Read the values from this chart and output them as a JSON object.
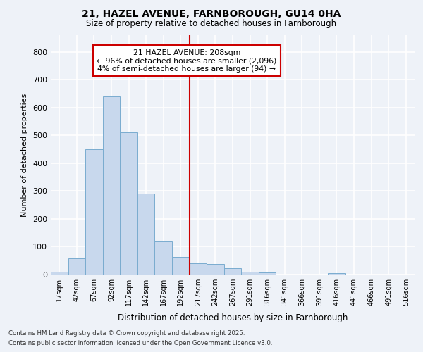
{
  "title_line1": "21, HAZEL AVENUE, FARNBOROUGH, GU14 0HA",
  "title_line2": "Size of property relative to detached houses in Farnborough",
  "xlabel": "Distribution of detached houses by size in Farnborough",
  "ylabel": "Number of detached properties",
  "categories": [
    "17sqm",
    "42sqm",
    "67sqm",
    "92sqm",
    "117sqm",
    "142sqm",
    "167sqm",
    "192sqm",
    "217sqm",
    "242sqm",
    "267sqm",
    "291sqm",
    "316sqm",
    "341sqm",
    "366sqm",
    "391sqm",
    "416sqm",
    "441sqm",
    "466sqm",
    "491sqm",
    "516sqm"
  ],
  "values": [
    11,
    57,
    450,
    640,
    510,
    290,
    120,
    63,
    40,
    37,
    22,
    10,
    8,
    0,
    0,
    0,
    5,
    0,
    0,
    0,
    0
  ],
  "bar_color": "#c8d8ed",
  "bar_edge_color": "#7aaccf",
  "vline_index": 7.5,
  "vline_color": "#cc0000",
  "annotation_text": "21 HAZEL AVENUE: 208sqm\n← 96% of detached houses are smaller (2,096)\n4% of semi-detached houses are larger (94) →",
  "annotation_box_color": "#ffffff",
  "annotation_box_edge": "#cc0000",
  "ylim": [
    0,
    860
  ],
  "yticks": [
    0,
    100,
    200,
    300,
    400,
    500,
    600,
    700,
    800
  ],
  "bg_color": "#eef2f8",
  "grid_color": "#ffffff",
  "footer_line1": "Contains HM Land Registry data © Crown copyright and database right 2025.",
  "footer_line2": "Contains public sector information licensed under the Open Government Licence v3.0.",
  "figsize": [
    6.0,
    5.0
  ],
  "dpi": 100
}
